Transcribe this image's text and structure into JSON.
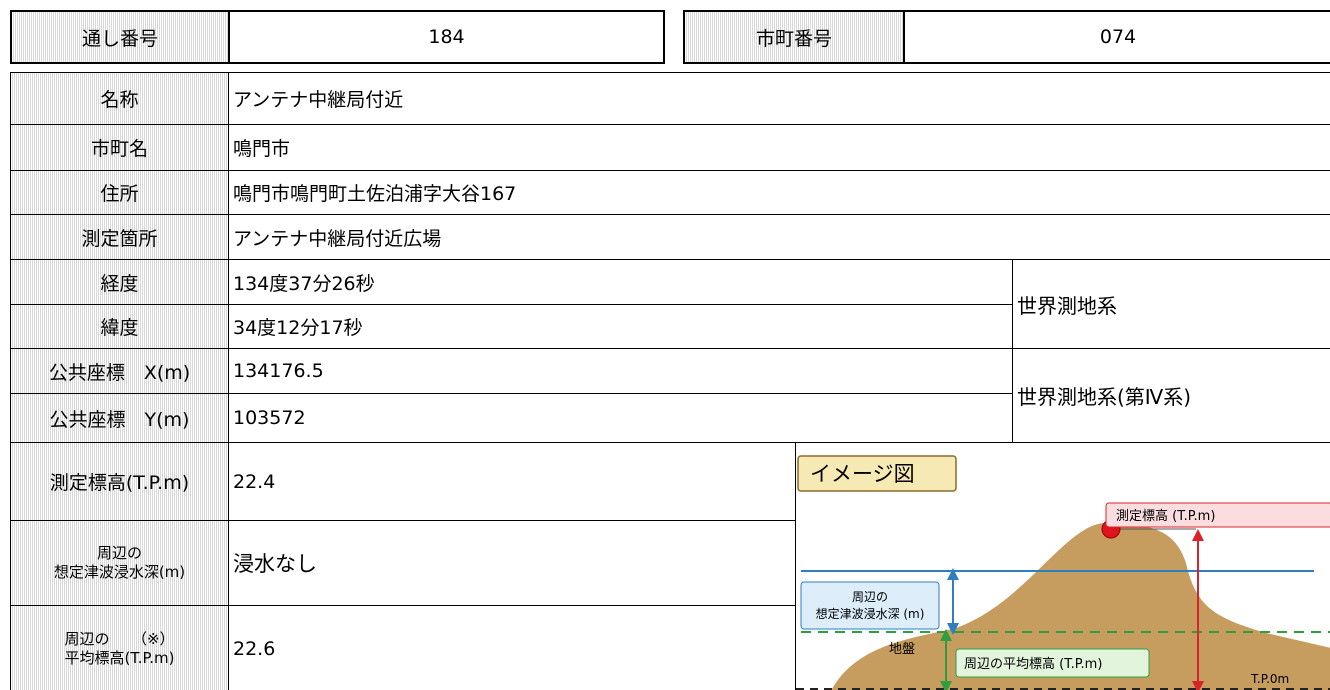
{
  "header": {
    "serial_label": "通し番号",
    "serial": "184",
    "city_code_label": "市町番号",
    "city_code": "074"
  },
  "table": {
    "rows": [
      {
        "label": "名称",
        "value": "アンテナ中継局付近"
      },
      {
        "label": "市町名",
        "value": "鳴門市"
      },
      {
        "label": "住所",
        "value": "鳴門市鳴門町土佐泊浦字大谷167"
      },
      {
        "label": "測定箇所",
        "value": "アンテナ中継局付近広場"
      },
      {
        "label": "経度",
        "value": "134度37分26秒"
      },
      {
        "label": "緯度",
        "value": "34度12分17秒"
      },
      {
        "label": "公共座標　X(m)",
        "value": "134176.5"
      },
      {
        "label": "公共座標　Y(m)",
        "value": "103572"
      }
    ],
    "datum_notes": [
      "世界測地系",
      "世界測地系(第Ⅳ系)"
    ],
    "elevation_rows": [
      {
        "label": [
          "測定標高(T.P.m)"
        ],
        "value": "22.4"
      },
      {
        "label": [
          "周辺の",
          "想定津波浸水深(m)"
        ],
        "value": "浸水なし"
      },
      {
        "label": [
          "周辺の　　（※）",
          "平均標高(T.P.m)"
        ],
        "value": "22.6"
      }
    ]
  },
  "diagram": {
    "title": "イメージ図",
    "measured_label": "測定標高 (T.P.m)",
    "tsunami_label": [
      "周辺の",
      "想定津波浸水深 (m)"
    ],
    "ground_label": "地盤",
    "average_label": "周辺の平均標高 (T.P.m)",
    "zero_label": "T.P.0m"
  }
}
